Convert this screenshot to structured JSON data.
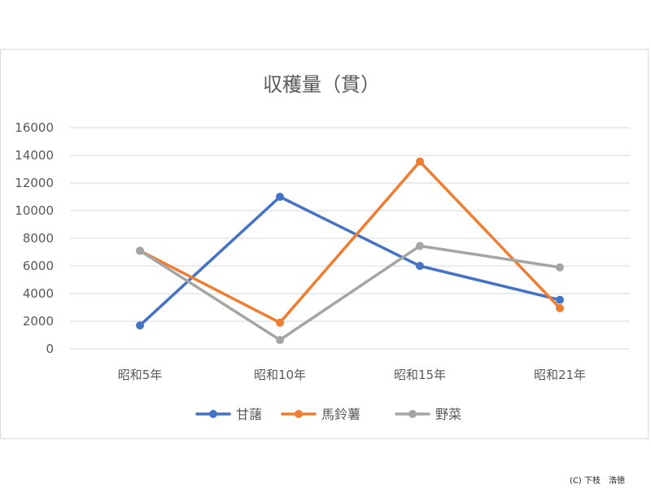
{
  "chart_data": {
    "type": "line",
    "title": "収穫量（貫）",
    "categories": [
      "昭和5年",
      "昭和10年",
      "昭和15年",
      "昭和21年"
    ],
    "ylim": [
      0,
      16000
    ],
    "yticks": [
      0,
      2000,
      4000,
      6000,
      8000,
      10000,
      12000,
      14000,
      16000
    ],
    "grid": true,
    "legend": "bottom",
    "series": [
      {
        "name": "甘藷",
        "color": "#4472c4",
        "values": [
          1700,
          11000,
          6000,
          3550
        ]
      },
      {
        "name": "馬鈴薯",
        "color": "#ed7d31",
        "values": [
          7100,
          1900,
          13550,
          2950
        ]
      },
      {
        "name": "野菜",
        "color": "#a5a5a5",
        "values": [
          7100,
          650,
          7450,
          5900
        ]
      }
    ]
  },
  "credit": "(C) 下枝　浩徳"
}
